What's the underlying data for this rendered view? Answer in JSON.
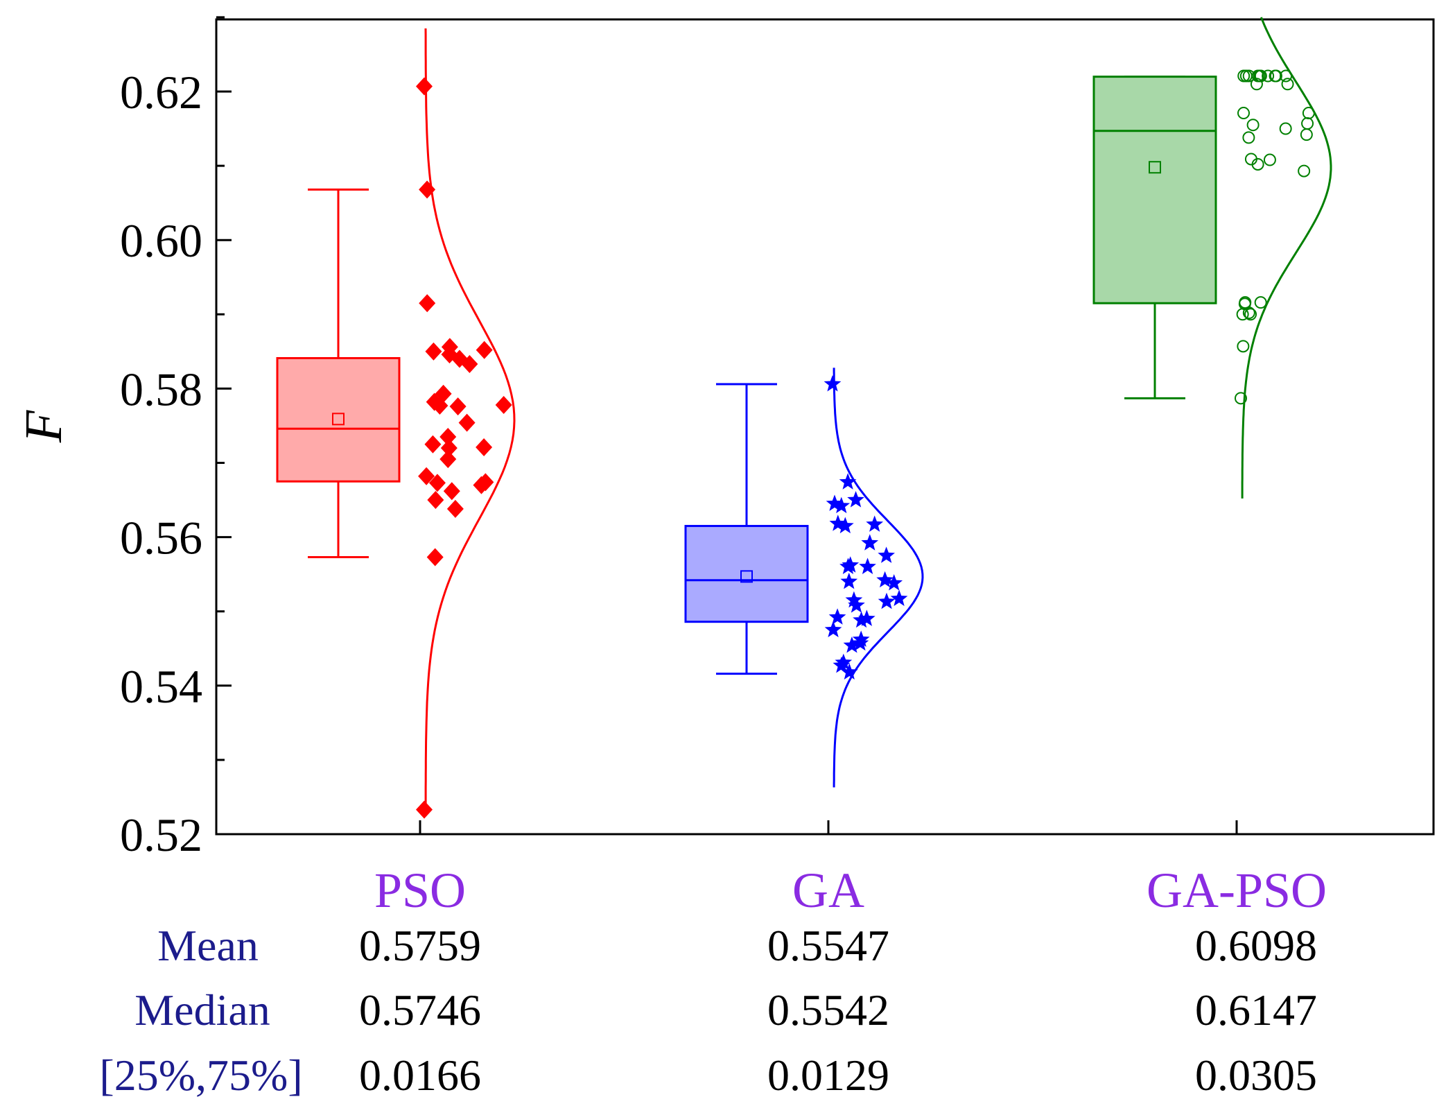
{
  "colors": {
    "category_label": "#8a2be2",
    "stat_header": "#1c1c8c",
    "axis": "#000000"
  },
  "chart_data": {
    "type": "box",
    "title": "",
    "xlabel": "",
    "ylabel": "F",
    "ylim": [
      0.52,
      0.63
    ],
    "yticks": [
      0.52,
      0.54,
      0.56,
      0.58,
      0.6,
      0.62
    ],
    "ytick_labels": [
      "0.52",
      "0.54",
      "0.56",
      "0.58",
      "0.60",
      "0.62"
    ],
    "series": [
      {
        "name": "PSO",
        "color": "#ff0000",
        "fill": "#ffaaaa",
        "marker": "diamond",
        "whisker_low": 0.5573,
        "q1": 0.5675,
        "median": 0.5746,
        "mean": 0.5759,
        "q3": 0.5841,
        "whisker_high": 0.6068,
        "points": [
          0.6207,
          0.6068,
          0.5915,
          0.5856,
          0.5852,
          0.585,
          0.5846,
          0.584,
          0.5833,
          0.5793,
          0.5782,
          0.5778,
          0.5776,
          0.5777,
          0.5754,
          0.5735,
          0.5725,
          0.5721,
          0.572,
          0.5705,
          0.5682,
          0.5674,
          0.5673,
          0.567,
          0.5662,
          0.565,
          0.5638,
          0.5573,
          0.5233
        ],
        "curve": {
          "mean": 0.5758,
          "sd": 0.0133,
          "ymin": 0.5228,
          "ymax": 0.6285
        }
      },
      {
        "name": "GA",
        "color": "#0000ff",
        "fill": "#aaaaff",
        "marker": "star",
        "whisker_low": 0.5416,
        "q1": 0.5486,
        "median": 0.5542,
        "mean": 0.5547,
        "q3": 0.5615,
        "whisker_high": 0.5806,
        "points": [
          0.5806,
          0.5674,
          0.565,
          0.5645,
          0.5642,
          0.5618,
          0.5617,
          0.5615,
          0.5592,
          0.5575,
          0.5562,
          0.556,
          0.556,
          0.5542,
          0.554,
          0.5538,
          0.5517,
          0.5515,
          0.5513,
          0.5508,
          0.5492,
          0.549,
          0.5488,
          0.5475,
          0.5462,
          0.5457,
          0.5454,
          0.5431,
          0.5427,
          0.5418
        ],
        "curve": {
          "mean": 0.5547,
          "sd": 0.0075,
          "ymin": 0.5263,
          "ymax": 0.5828
        }
      },
      {
        "name": "GA-PSO",
        "color": "#008000",
        "fill": "#a8d8a8",
        "marker": "circle",
        "whisker_low": 0.5787,
        "q1": 0.5915,
        "median": 0.6147,
        "mean": 0.6098,
        "q3": 0.622,
        "whisker_high": 0.622,
        "points": [
          0.6221,
          0.6221,
          0.6221,
          0.6221,
          0.6221,
          0.6221,
          0.6221,
          0.6221,
          0.6221,
          0.6221,
          0.621,
          0.621,
          0.6171,
          0.6171,
          0.6157,
          0.6155,
          0.615,
          0.6142,
          0.6138,
          0.6108,
          0.6109,
          0.6102,
          0.6093,
          0.5916,
          0.5916,
          0.5914,
          0.5902,
          0.59,
          0.59,
          0.5857,
          0.5787
        ],
        "curve": {
          "mean": 0.6098,
          "sd": 0.0115,
          "ymin": 0.5652,
          "ymax": 0.63
        }
      }
    ],
    "stats_table": {
      "row_labels": [
        "Mean",
        "Median",
        "[25%,75%]"
      ],
      "columns": [
        {
          "name": "PSO",
          "values": [
            "0.5759",
            "0.5746",
            "0.0166"
          ]
        },
        {
          "name": "GA",
          "values": [
            "0.5547",
            "0.5542",
            "0.0129"
          ]
        },
        {
          "name": "GA-PSO",
          "values": [
            "0.6098",
            "0.6147",
            "0.0305"
          ]
        }
      ]
    }
  }
}
